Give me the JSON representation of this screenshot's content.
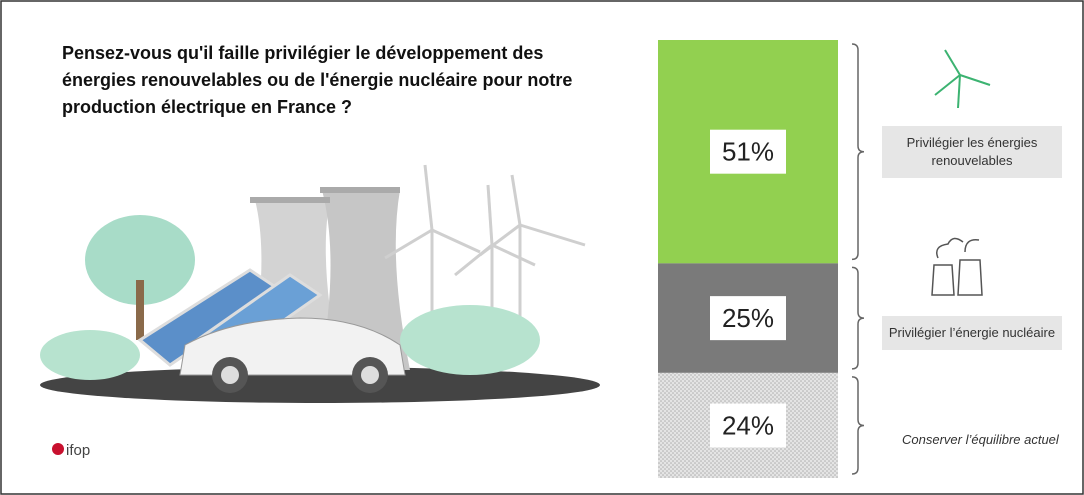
{
  "chart_data": {
    "type": "stacked-bar",
    "title": "Pensez-vous qu'il faille privilégier le développement des énergies renouvelables ou de l'énergie nucléaire pour notre production électrique en France ?",
    "logo": "ifop",
    "series": [
      {
        "name": "Privilégier les énergies renouvelables",
        "color": "#92d050",
        "values": [
          51
        ],
        "value_labels": [
          "51%"
        ]
      },
      {
        "name": "Privilégier l’énergie nucléaire",
        "color": "#7a7a7a",
        "values": [
          25
        ],
        "value_labels": [
          "25%"
        ]
      },
      {
        "name": "Conserver l’équilibre actuel",
        "color": "#e4e4e4",
        "values": [
          24
        ],
        "value_labels": [
          "24%"
        ]
      }
    ]
  }
}
